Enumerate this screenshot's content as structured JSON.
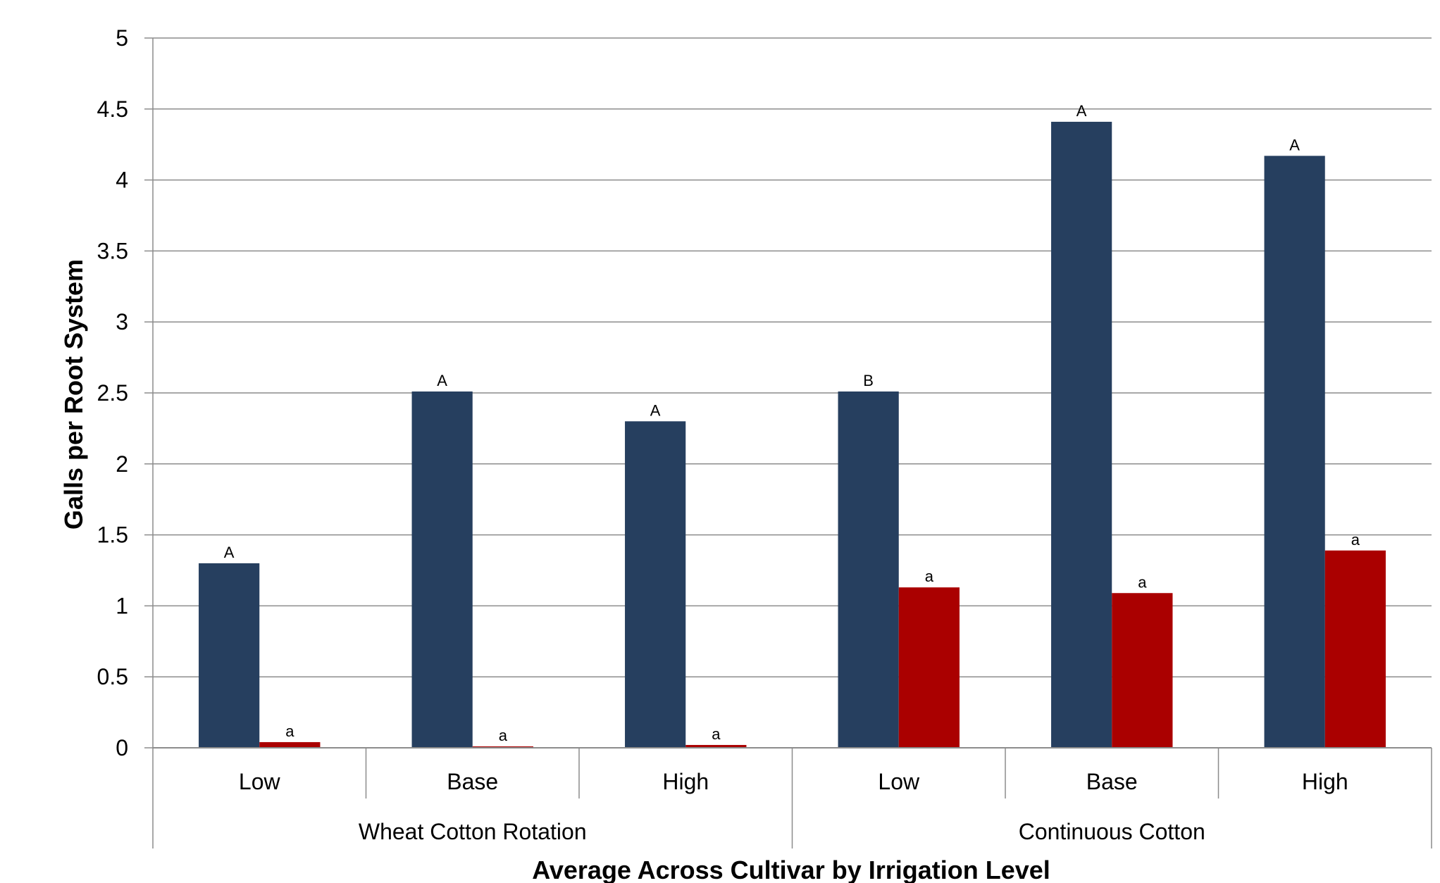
{
  "chart_data": {
    "type": "bar",
    "title": "",
    "xlabel": "Average Across Cultivar by Irrigation Level",
    "ylabel": "Galls per Root System",
    "ylim": [
      0,
      5
    ],
    "yticks": [
      "0",
      "0.5",
      "1",
      "1.5",
      "2",
      "2.5",
      "3",
      "3.5",
      "4",
      "4.5",
      "5"
    ],
    "grid": true,
    "groups": [
      {
        "label": "Wheat Cotton Rotation",
        "categories": [
          "Low",
          "Base",
          "High"
        ]
      },
      {
        "label": "Continuous Cotton",
        "categories": [
          "Low",
          "Base",
          "High"
        ]
      }
    ],
    "categories": [
      "Low",
      "Base",
      "High",
      "Low",
      "Base",
      "High"
    ],
    "series": [
      {
        "color": "#263f5f",
        "values": [
          1.3,
          2.51,
          2.3,
          2.51,
          4.41,
          4.17
        ],
        "labels": [
          "A",
          "A",
          "A",
          "B",
          "A",
          "A"
        ]
      },
      {
        "color": "#aa0000",
        "values": [
          0.04,
          0.01,
          0.02,
          1.13,
          1.09,
          1.39
        ],
        "labels": [
          "a",
          "a",
          "a",
          "a",
          "a",
          "a"
        ]
      }
    ]
  }
}
